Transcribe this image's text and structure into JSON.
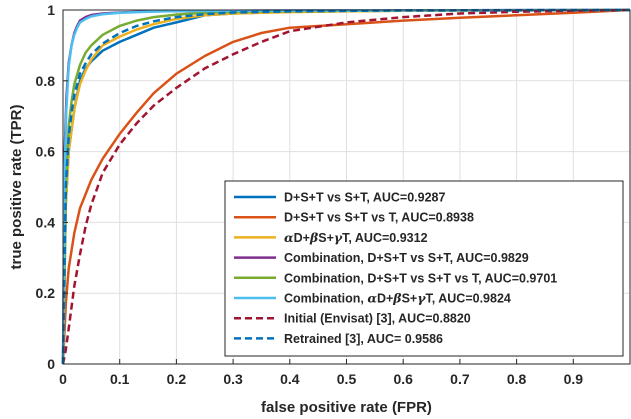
{
  "chart_data": {
    "type": "line",
    "xlabel": "false positive rate (FPR)",
    "ylabel": "true positive rate (TPR)",
    "xlim": [
      0,
      1
    ],
    "ylim": [
      0,
      1
    ],
    "grid": true,
    "legend_position": "bottom-right",
    "xticks": [
      0,
      0.1,
      0.2,
      0.3,
      0.4,
      0.5,
      0.6,
      0.7,
      0.8,
      0.9
    ],
    "xtick_labels": [
      "0",
      "0.1",
      "0.2",
      "0.3",
      "0.4",
      "0.5",
      "0.6",
      "0.7",
      "0.8",
      "0.9"
    ],
    "yticks": [
      0,
      0.2,
      0.4,
      0.6,
      0.8,
      1
    ],
    "ytick_labels": [
      "0",
      "0.2",
      "0.4",
      "0.6",
      "0.8",
      "1"
    ],
    "series": [
      {
        "label_parts": [
          [
            "n",
            "D+S+T vs S+T, AUC=0.9287"
          ]
        ],
        "color": "#0072BD",
        "dash": "solid",
        "x": [
          0,
          0.005,
          0.01,
          0.02,
          0.03,
          0.04,
          0.05,
          0.07,
          0.1,
          0.13,
          0.16,
          0.2,
          0.25,
          0.3,
          0.35,
          0.4,
          0.5,
          0.6,
          0.8,
          1
        ],
        "y": [
          0,
          0.45,
          0.6,
          0.72,
          0.8,
          0.835,
          0.855,
          0.885,
          0.91,
          0.93,
          0.95,
          0.965,
          0.985,
          0.99,
          0.993,
          0.995,
          0.997,
          0.998,
          0.999,
          1
        ]
      },
      {
        "label_parts": [
          [
            "n",
            "D+S+T vs S+T vs T, AUC=0.8938"
          ]
        ],
        "color": "#D95319",
        "dash": "solid",
        "x": [
          0,
          0.005,
          0.01,
          0.02,
          0.03,
          0.05,
          0.07,
          0.1,
          0.13,
          0.16,
          0.2,
          0.25,
          0.3,
          0.35,
          0.4,
          0.5,
          0.6,
          0.7,
          0.8,
          0.9,
          1
        ],
        "y": [
          0,
          0.17,
          0.27,
          0.37,
          0.44,
          0.52,
          0.58,
          0.65,
          0.71,
          0.765,
          0.82,
          0.87,
          0.91,
          0.935,
          0.95,
          0.96,
          0.97,
          0.978,
          0.985,
          0.992,
          1
        ]
      },
      {
        "label_parts": [
          [
            "g",
            "α"
          ],
          [
            "n",
            "D+"
          ],
          [
            "g",
            "β"
          ],
          [
            "n",
            "S+"
          ],
          [
            "g",
            "γ"
          ],
          [
            "n",
            "T, AUC=0.9312"
          ]
        ],
        "color": "#EDB120",
        "dash": "solid",
        "x": [
          0,
          0.005,
          0.01,
          0.02,
          0.03,
          0.04,
          0.05,
          0.07,
          0.1,
          0.13,
          0.16,
          0.2,
          0.25,
          0.3,
          0.4,
          0.5,
          0.6,
          0.8,
          1
        ],
        "y": [
          0,
          0.45,
          0.6,
          0.72,
          0.79,
          0.83,
          0.86,
          0.9,
          0.925,
          0.945,
          0.96,
          0.975,
          0.985,
          0.99,
          0.994,
          0.996,
          0.998,
          0.999,
          1
        ]
      },
      {
        "label_parts": [
          [
            "n",
            "Combination, D+S+T vs S+T, AUC=0.9829"
          ]
        ],
        "color": "#7E2F8E",
        "dash": "solid",
        "x": [
          0,
          0.003,
          0.006,
          0.01,
          0.015,
          0.02,
          0.025,
          0.03,
          0.04,
          0.05,
          0.07,
          0.1,
          0.15,
          0.2,
          0.3,
          0.5,
          0.7,
          1
        ],
        "y": [
          0,
          0.6,
          0.75,
          0.85,
          0.9,
          0.935,
          0.955,
          0.97,
          0.98,
          0.986,
          0.99,
          0.993,
          0.996,
          0.997,
          0.998,
          0.999,
          0.9995,
          1
        ]
      },
      {
        "label_parts": [
          [
            "n",
            "Combination, D+S+T vs S+T vs T, AUC=0.9701"
          ]
        ],
        "color": "#77AC30",
        "dash": "solid",
        "x": [
          0,
          0.005,
          0.01,
          0.015,
          0.02,
          0.03,
          0.04,
          0.05,
          0.07,
          0.1,
          0.13,
          0.16,
          0.2,
          0.25,
          0.3,
          0.4,
          0.6,
          1
        ],
        "y": [
          0,
          0.5,
          0.67,
          0.74,
          0.79,
          0.845,
          0.88,
          0.9,
          0.93,
          0.955,
          0.97,
          0.98,
          0.987,
          0.992,
          0.995,
          0.997,
          0.999,
          1
        ]
      },
      {
        "label_parts": [
          [
            "n",
            "Combination, "
          ],
          [
            "g",
            "α"
          ],
          [
            "n",
            "D+"
          ],
          [
            "g",
            "β"
          ],
          [
            "n",
            "S+"
          ],
          [
            "g",
            "γ"
          ],
          [
            "n",
            "T, AUC=0.9824"
          ]
        ],
        "color": "#4DBEEE",
        "dash": "solid",
        "x": [
          0,
          0.003,
          0.006,
          0.01,
          0.015,
          0.02,
          0.025,
          0.03,
          0.04,
          0.05,
          0.07,
          0.1,
          0.15,
          0.2,
          0.3,
          0.5,
          0.7,
          1
        ],
        "y": [
          0,
          0.55,
          0.72,
          0.84,
          0.9,
          0.93,
          0.95,
          0.965,
          0.975,
          0.982,
          0.988,
          0.992,
          0.995,
          0.997,
          0.998,
          0.999,
          0.9995,
          1
        ]
      },
      {
        "label_parts": [
          [
            "n",
            "Initial (Envisat) [3], AUC=0.8820"
          ]
        ],
        "color": "#A2142F",
        "dash": "dashed",
        "x": [
          0,
          0.005,
          0.01,
          0.02,
          0.03,
          0.04,
          0.05,
          0.07,
          0.1,
          0.13,
          0.16,
          0.2,
          0.25,
          0.3,
          0.35,
          0.4,
          0.5,
          0.6,
          0.7,
          0.8,
          0.9,
          1
        ],
        "y": [
          0,
          0.04,
          0.1,
          0.22,
          0.31,
          0.39,
          0.45,
          0.54,
          0.62,
          0.68,
          0.73,
          0.78,
          0.835,
          0.875,
          0.91,
          0.94,
          0.965,
          0.98,
          0.99,
          0.995,
          0.998,
          1
        ]
      },
      {
        "label_parts": [
          [
            "n",
            "Retrained [3], AUC= 0.9586"
          ]
        ],
        "color": "#0072BD",
        "dash": "dashed",
        "x": [
          0,
          0.005,
          0.01,
          0.015,
          0.02,
          0.03,
          0.04,
          0.05,
          0.07,
          0.1,
          0.13,
          0.16,
          0.2,
          0.25,
          0.3,
          0.4,
          0.6,
          1
        ],
        "y": [
          0,
          0.5,
          0.64,
          0.71,
          0.76,
          0.82,
          0.85,
          0.875,
          0.905,
          0.935,
          0.955,
          0.968,
          0.98,
          0.988,
          0.993,
          0.996,
          0.999,
          1
        ]
      }
    ]
  }
}
